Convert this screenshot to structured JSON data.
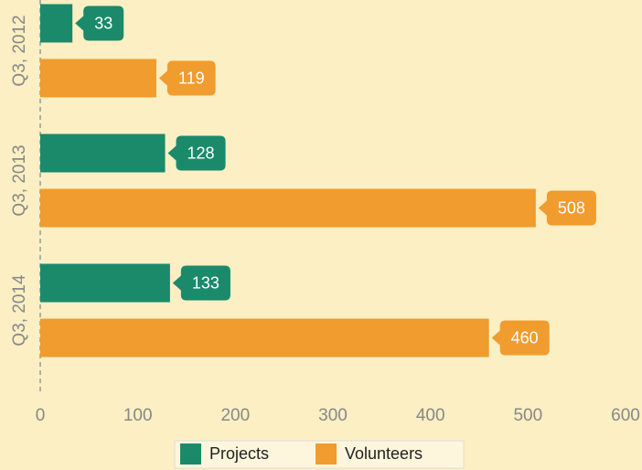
{
  "chart_data": {
    "type": "hbar",
    "categories": [
      "Q3, 2012",
      "Q3, 2013",
      "Q3, 2014"
    ],
    "series": [
      {
        "name": "Projects",
        "color": "#1b8a6b",
        "values": [
          33,
          128,
          133
        ]
      },
      {
        "name": "Volunteers",
        "color": "#f09c2e",
        "values": [
          119,
          508,
          460
        ]
      }
    ],
    "xlim": [
      0,
      600
    ],
    "xticks": [
      0,
      100,
      200,
      300,
      400,
      500,
      600
    ],
    "legend": "bottom"
  }
}
